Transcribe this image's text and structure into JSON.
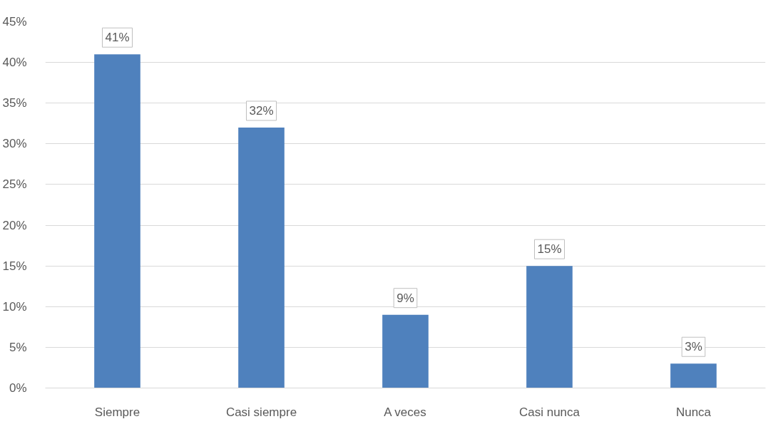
{
  "chart_data": {
    "type": "bar",
    "categories": [
      "Siempre",
      "Casi siempre",
      "A veces",
      "Casi nunca",
      "Nunca"
    ],
    "values": [
      41,
      32,
      9,
      15,
      3
    ],
    "color": "#4f81bd",
    "value_labels": [
      "41%",
      "32%",
      "9%",
      "15%",
      "3%"
    ],
    "ylim": [
      0,
      45
    ],
    "yticks": [
      {
        "value": 0,
        "label": "0%"
      },
      {
        "value": 5,
        "label": "5%"
      },
      {
        "value": 10,
        "label": "10%"
      },
      {
        "value": 15,
        "label": "15%"
      },
      {
        "value": 20,
        "label": "20%"
      },
      {
        "value": 25,
        "label": "25%"
      },
      {
        "value": 30,
        "label": "30%"
      },
      {
        "value": 35,
        "label": "35%"
      },
      {
        "value": 40,
        "label": "40%"
      },
      {
        "value": 45,
        "label": "45%"
      }
    ],
    "grid": "y"
  }
}
